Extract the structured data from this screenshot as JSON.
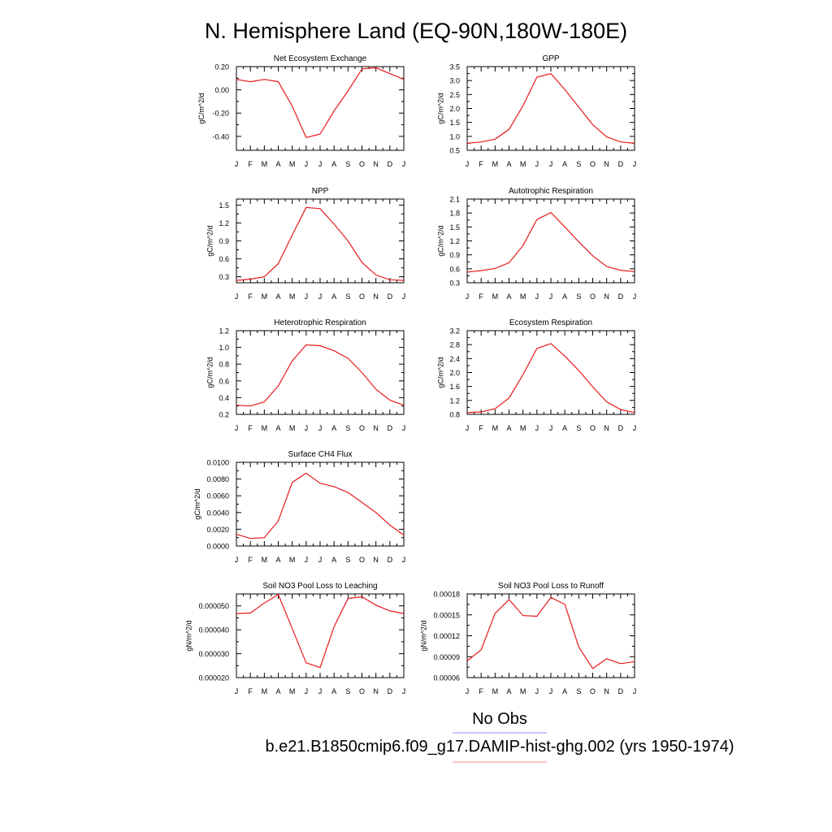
{
  "page": {
    "title": "N. Hemisphere Land (EQ-90N,180W-180E)",
    "legend": [
      {
        "label": "No Obs",
        "color": "#8a8aff"
      },
      {
        "label": "b.e21.B1850cmip6.f09_g17.DAMIP-hist-ghg.002 (yrs 1950-1974)",
        "color": "#ff8080"
      }
    ],
    "line_color": "#e8191d"
  },
  "chart_data": [
    {
      "type": "line",
      "title": "Net Ecosystem Exchange",
      "ylabel": "gC/m^2/d",
      "categories": [
        "J",
        "F",
        "M",
        "A",
        "M",
        "J",
        "J",
        "A",
        "S",
        "O",
        "N",
        "D",
        "J"
      ],
      "ylim": [
        -0.52,
        0.2
      ],
      "yticks": [
        "0.20",
        "0.00",
        "-0.20",
        "-0.40"
      ],
      "ytick_values": [
        0.2,
        0.0,
        -0.2,
        -0.4
      ],
      "series": [
        {
          "values": [
            0.09,
            0.07,
            0.09,
            0.07,
            -0.14,
            -0.41,
            -0.38,
            -0.18,
            -0.01,
            0.18,
            0.19,
            0.14,
            0.09
          ]
        }
      ]
    },
    {
      "type": "line",
      "title": "GPP",
      "ylabel": "gC/m^2/d",
      "categories": [
        "J",
        "F",
        "M",
        "A",
        "M",
        "J",
        "J",
        "A",
        "S",
        "O",
        "N",
        "D",
        "J"
      ],
      "ylim": [
        0.5,
        3.5
      ],
      "yticks": [
        "3.5",
        "3.0",
        "2.5",
        "2.0",
        "1.5",
        "1.0",
        "0.5"
      ],
      "ytick_values": [
        3.5,
        3.0,
        2.5,
        2.0,
        1.5,
        1.0,
        0.5
      ],
      "series": [
        {
          "values": [
            0.75,
            0.8,
            0.9,
            1.25,
            2.1,
            3.12,
            3.25,
            2.68,
            2.05,
            1.42,
            0.98,
            0.8,
            0.75
          ]
        }
      ]
    },
    {
      "type": "line",
      "title": "NPP",
      "ylabel": "gC/m^2/d",
      "categories": [
        "J",
        "F",
        "M",
        "A",
        "M",
        "J",
        "J",
        "A",
        "S",
        "O",
        "N",
        "D",
        "J"
      ],
      "ylim": [
        0.2,
        1.6
      ],
      "yticks": [
        "1.5",
        "1.2",
        "0.9",
        "0.6",
        "0.3"
      ],
      "ytick_values": [
        1.5,
        1.2,
        0.9,
        0.6,
        0.3
      ],
      "series": [
        {
          "values": [
            0.24,
            0.26,
            0.3,
            0.52,
            1.0,
            1.46,
            1.44,
            1.18,
            0.9,
            0.54,
            0.33,
            0.25,
            0.24
          ]
        }
      ]
    },
    {
      "type": "line",
      "title": "Autotrophic Respiration",
      "ylabel": "gC/m^2/d",
      "categories": [
        "J",
        "F",
        "M",
        "A",
        "M",
        "J",
        "J",
        "A",
        "S",
        "O",
        "N",
        "D",
        "J"
      ],
      "ylim": [
        0.3,
        2.1
      ],
      "yticks": [
        "2.1",
        "1.8",
        "1.5",
        "1.2",
        "0.9",
        "0.6",
        "0.3"
      ],
      "ytick_values": [
        2.1,
        1.8,
        1.5,
        1.2,
        0.9,
        0.6,
        0.3
      ],
      "series": [
        {
          "values": [
            0.53,
            0.56,
            0.61,
            0.73,
            1.1,
            1.66,
            1.81,
            1.5,
            1.18,
            0.88,
            0.65,
            0.57,
            0.54
          ]
        }
      ]
    },
    {
      "type": "line",
      "title": "Heterotrophic Respiration",
      "ylabel": "gC/m^2/d",
      "categories": [
        "J",
        "F",
        "M",
        "A",
        "M",
        "J",
        "J",
        "A",
        "S",
        "O",
        "N",
        "D",
        "J"
      ],
      "ylim": [
        0.2,
        1.2
      ],
      "yticks": [
        "1.2",
        "1.0",
        "0.8",
        "0.6",
        "0.4",
        "0.2"
      ],
      "ytick_values": [
        1.2,
        1.0,
        0.8,
        0.6,
        0.4,
        0.2
      ],
      "series": [
        {
          "values": [
            0.31,
            0.3,
            0.35,
            0.54,
            0.84,
            1.03,
            1.02,
            0.96,
            0.87,
            0.7,
            0.5,
            0.37,
            0.31
          ]
        }
      ]
    },
    {
      "type": "line",
      "title": "Ecosystem Respiration",
      "ylabel": "gC/m^2/d",
      "categories": [
        "J",
        "F",
        "M",
        "A",
        "M",
        "J",
        "J",
        "A",
        "S",
        "O",
        "N",
        "D",
        "J"
      ],
      "ylim": [
        0.8,
        3.2
      ],
      "yticks": [
        "3.2",
        "2.8",
        "2.4",
        "2.0",
        "1.6",
        "1.2",
        "0.8"
      ],
      "ytick_values": [
        3.2,
        2.8,
        2.4,
        2.0,
        1.6,
        1.2,
        0.8
      ],
      "series": [
        {
          "values": [
            0.85,
            0.87,
            0.96,
            1.27,
            1.94,
            2.69,
            2.83,
            2.47,
            2.06,
            1.59,
            1.16,
            0.94,
            0.85
          ]
        }
      ]
    },
    {
      "type": "line",
      "title": "Surface CH4 Flux",
      "ylabel": "gC/m^2/d",
      "categories": [
        "J",
        "F",
        "M",
        "A",
        "M",
        "J",
        "J",
        "A",
        "S",
        "O",
        "N",
        "D",
        "J"
      ],
      "ylim": [
        0.0,
        0.01
      ],
      "yticks": [
        "0.0100",
        "0.0080",
        "0.0060",
        "0.0040",
        "0.0020",
        "0.0000"
      ],
      "ytick_values": [
        0.01,
        0.008,
        0.006,
        0.004,
        0.002,
        0.0
      ],
      "series": [
        {
          "values": [
            0.0014,
            0.0009,
            0.001,
            0.003,
            0.0076,
            0.0087,
            0.0075,
            0.0071,
            0.0064,
            0.0052,
            0.004,
            0.0025,
            0.0013
          ]
        }
      ]
    },
    {
      "type": "line",
      "title": "Soil NO3 Pool Loss to Leaching",
      "ylabel": "gN/m^2/d",
      "categories": [
        "J",
        "F",
        "M",
        "A",
        "M",
        "J",
        "J",
        "A",
        "S",
        "O",
        "N",
        "D",
        "J"
      ],
      "ylim": [
        2e-05,
        5.5e-05
      ],
      "yticks": [
        "0.000050",
        "0.000040",
        "0.000030",
        "0.000020"
      ],
      "ytick_values": [
        5e-05,
        4e-05,
        3e-05,
        2e-05
      ],
      "series": [
        {
          "values": [
            4.68e-05,
            4.7e-05,
            5.12e-05,
            5.48e-05,
            4.05e-05,
            2.62e-05,
            2.42e-05,
            4.13e-05,
            5.31e-05,
            5.38e-05,
            5.03e-05,
            4.79e-05,
            4.68e-05
          ]
        }
      ]
    },
    {
      "type": "line",
      "title": "Soil NO3 Pool Loss to Runoff",
      "ylabel": "gN/m^2/d",
      "categories": [
        "J",
        "F",
        "M",
        "A",
        "M",
        "J",
        "J",
        "A",
        "S",
        "O",
        "N",
        "D",
        "J"
      ],
      "ylim": [
        6e-05,
        0.00018
      ],
      "yticks": [
        "0.00018",
        "0.00015",
        "0.00012",
        "0.00009",
        "0.00006"
      ],
      "ytick_values": [
        0.00018,
        0.00015,
        0.00012,
        9e-05,
        6e-05
      ],
      "series": [
        {
          "values": [
            8.4e-05,
            0.0001,
            0.000152,
            0.000172,
            0.000149,
            0.000148,
            0.000175,
            0.000165,
            0.000104,
            7.3e-05,
            8.7e-05,
            8e-05,
            8.3e-05
          ]
        }
      ]
    }
  ]
}
